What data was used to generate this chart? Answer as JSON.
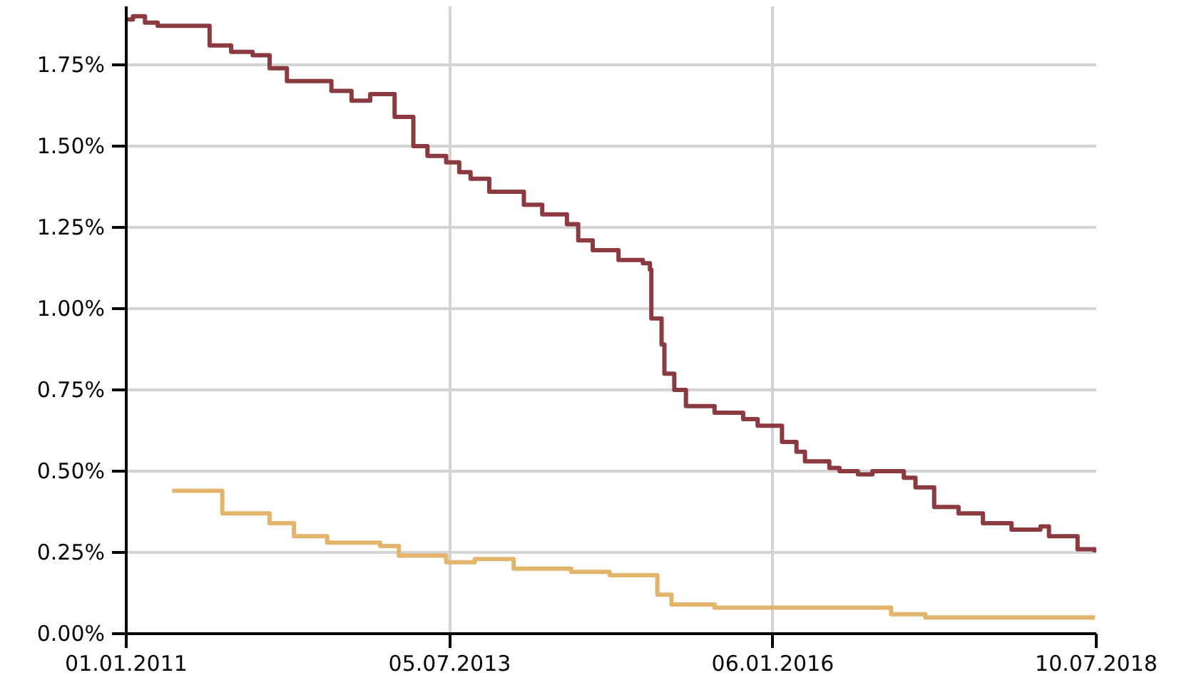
{
  "chart_data": {
    "type": "step",
    "xlim": [
      "2011-01-01",
      "2018-07-10"
    ],
    "ylim": [
      0,
      1.93
    ],
    "xticks": [
      {
        "value": "2011-01-01",
        "label": "01.01.2011"
      },
      {
        "value": "2013-07-05",
        "label": "05.07.2013"
      },
      {
        "value": "2016-01-06",
        "label": "06.01.2016"
      },
      {
        "value": "2018-07-10",
        "label": "10.07.2018"
      }
    ],
    "yticks": [
      {
        "value": 0,
        "label": "0.00%"
      },
      {
        "value": 0.25,
        "label": "0.25%"
      },
      {
        "value": 0.5,
        "label": "0.50%"
      },
      {
        "value": 0.75,
        "label": "0.75%"
      },
      {
        "value": 1.0,
        "label": "1.00%"
      },
      {
        "value": 1.25,
        "label": "1.25%"
      },
      {
        "value": 1.5,
        "label": "1.50%"
      },
      {
        "value": 1.75,
        "label": "1.75%"
      }
    ],
    "grid": true,
    "line_style": "solid",
    "marker": "none",
    "series": [
      {
        "color": "#8b3a3f",
        "x": [
          "2011-01-01",
          "2011-01-20",
          "2011-02-23",
          "2011-03-31",
          "2011-07-23",
          "2011-08-25",
          "2011-10-25",
          "2011-12-25",
          "2012-02-11",
          "2012-03-31",
          "2012-06-24",
          "2012-08-04",
          "2012-09-30",
          "2012-11-22",
          "2012-12-24",
          "2013-01-30",
          "2013-03-24",
          "2013-05-03",
          "2013-06-25",
          "2013-08-01",
          "2013-09-02",
          "2013-10-25",
          "2013-12-25",
          "2014-01-31",
          "2014-03-24",
          "2014-06-02",
          "2014-07-04",
          "2014-08-14",
          "2014-10-26",
          "2015-01-03",
          "2015-01-23",
          "2015-01-27",
          "2015-02-25",
          "2015-03-05",
          "2015-04-02",
          "2015-05-05",
          "2015-07-25",
          "2015-10-14",
          "2015-11-24",
          "2016-01-04",
          "2016-02-01",
          "2016-03-13",
          "2016-04-06",
          "2016-06-14",
          "2016-07-13",
          "2016-09-03",
          "2016-10-14",
          "2016-12-22",
          "2017-01-11",
          "2017-02-13",
          "2017-04-07",
          "2017-06-15",
          "2017-08-23",
          "2017-11-12",
          "2018-02-02",
          "2018-02-26",
          "2018-05-18",
          "2018-07-06"
        ],
        "values": [
          1.89,
          1.9,
          1.88,
          1.87,
          1.87,
          1.81,
          1.79,
          1.78,
          1.74,
          1.7,
          1.7,
          1.67,
          1.64,
          1.66,
          1.66,
          1.59,
          1.5,
          1.47,
          1.45,
          1.42,
          1.4,
          1.36,
          1.36,
          1.32,
          1.29,
          1.26,
          1.21,
          1.18,
          1.15,
          1.14,
          1.12,
          0.97,
          0.89,
          0.8,
          0.75,
          0.7,
          0.68,
          0.66,
          0.64,
          0.64,
          0.59,
          0.56,
          0.53,
          0.51,
          0.5,
          0.49,
          0.5,
          0.5,
          0.48,
          0.45,
          0.39,
          0.37,
          0.34,
          0.32,
          0.33,
          0.3,
          0.26,
          0.25
        ]
      },
      {
        "color": "#e3b56c",
        "x": [
          "2011-05-11",
          "2011-08-13",
          "2011-09-30",
          "2011-12-21",
          "2012-02-11",
          "2012-04-20",
          "2012-07-23",
          "2012-12-20",
          "2013-02-11",
          "2013-06-25",
          "2013-09-14",
          "2013-12-21",
          "2014-01-02",
          "2014-06-14",
          "2014-10-01",
          "2015-01-15",
          "2015-02-13",
          "2015-03-25",
          "2015-07-25",
          "2016-01-04",
          "2016-06-02",
          "2016-12-06",
          "2017-03-13",
          "2018-07-06"
        ],
        "values": [
          0.44,
          0.44,
          0.37,
          0.37,
          0.34,
          0.3,
          0.28,
          0.27,
          0.24,
          0.22,
          0.23,
          0.23,
          0.2,
          0.19,
          0.18,
          0.18,
          0.12,
          0.09,
          0.08,
          0.08,
          0.08,
          0.06,
          0.05,
          0.05
        ]
      }
    ]
  }
}
